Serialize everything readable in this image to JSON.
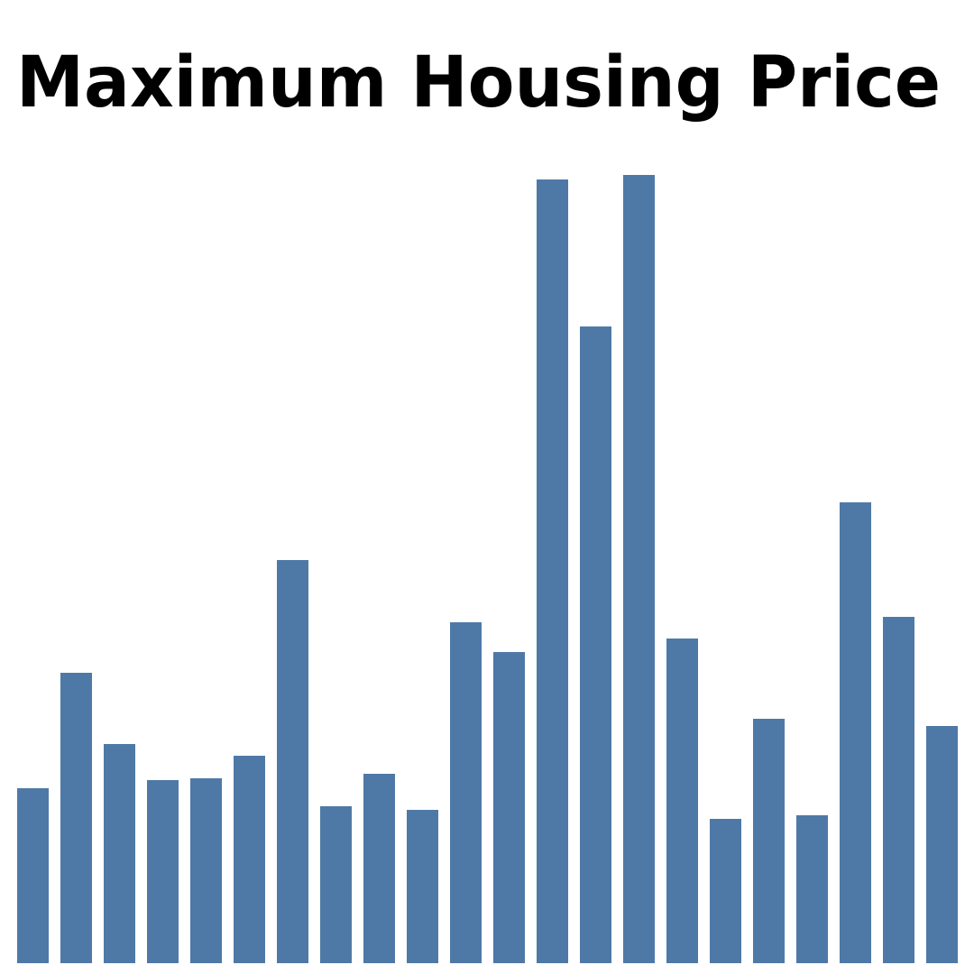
{
  "chart_data": {
    "type": "bar",
    "title": "Maximum Housing Price",
    "categories": [
      null,
      null,
      null,
      null,
      null,
      null,
      null,
      null,
      null,
      null,
      null,
      null,
      null,
      null,
      null,
      null,
      null,
      null,
      null,
      null,
      null,
      null
    ],
    "values": [
      194,
      322,
      243,
      203,
      205,
      230,
      447,
      174,
      210,
      170,
      378,
      345,
      869,
      706,
      874,
      360,
      160,
      271,
      164,
      511,
      384,
      263
    ],
    "color": "#4e79a7",
    "ylim": [
      0,
      874
    ]
  }
}
